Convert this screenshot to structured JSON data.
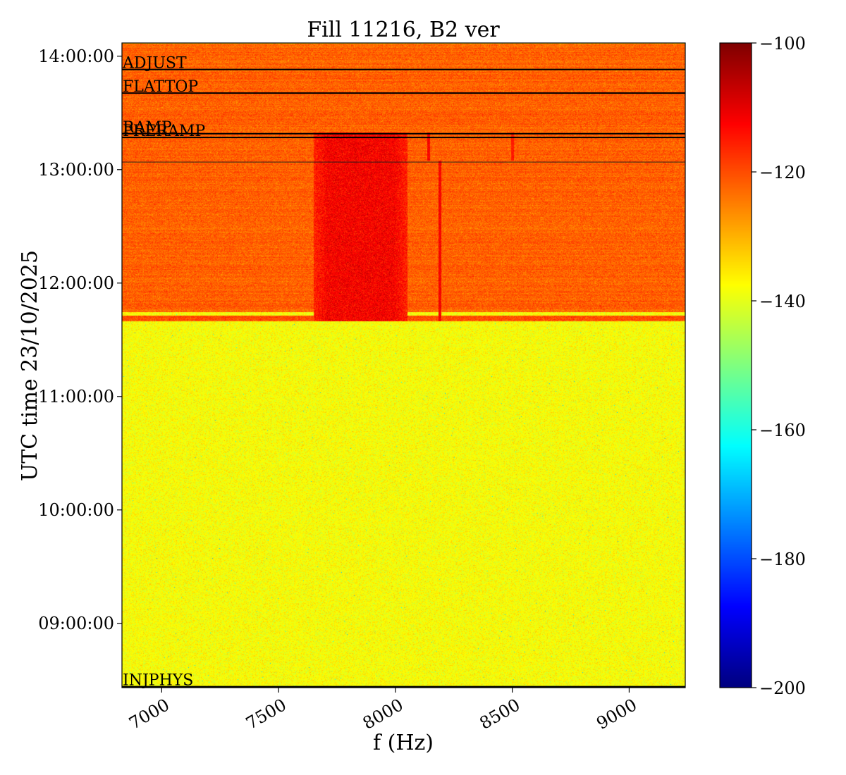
{
  "chart_data": {
    "type": "heatmap",
    "title": "Fill 11216, B2 ver",
    "xlabel": "f (Hz)",
    "ylabel": "UTC time 23/10/2025",
    "xlim": [
      6830,
      9240
    ],
    "ylim": [
      "08:26:00",
      "14:07:00"
    ],
    "x_ticks": [
      7000,
      7500,
      8000,
      8500,
      9000
    ],
    "x_tick_labels": [
      "7000",
      "7500",
      "8000",
      "8500",
      "9000"
    ],
    "y_ticks": [
      "09:00:00",
      "10:00:00",
      "11:00:00",
      "12:00:00",
      "13:00:00",
      "14:00:00"
    ],
    "y_tick_labels": [
      "09:00:00",
      "10:00:00",
      "11:00:00",
      "12:00:00",
      "13:00:00",
      "14:00:00"
    ],
    "colorbar": {
      "colormap": "jet",
      "range": [
        -200,
        -100
      ],
      "ticks": [
        -200,
        -180,
        -160,
        -140,
        -120,
        -100
      ],
      "tick_labels": [
        "−200",
        "−180",
        "−160",
        "−140",
        "−120",
        "−100"
      ]
    },
    "regions": [
      {
        "t_start": "08:26:00",
        "t_end": "11:40:00",
        "level_db": -138
      },
      {
        "t_start": "11:40:00",
        "t_end": "11:43:00",
        "level_db": -120
      },
      {
        "t_start": "11:43:00",
        "t_end": "11:45:00",
        "level_db": -138
      },
      {
        "t_start": "11:45:00",
        "t_end": "14:07:00",
        "level_db": -122
      }
    ],
    "features": [
      {
        "kind": "band",
        "f_start": 7650,
        "f_end": 8050,
        "t_start": "11:40:00",
        "t_end": "13:20:00",
        "level_db": -110
      },
      {
        "kind": "line",
        "f": 8190,
        "t_start": "11:40:00",
        "t_end": "13:05:00",
        "level_db": -112
      },
      {
        "kind": "line",
        "f": 8140,
        "t_start": "13:05:00",
        "t_end": "13:20:00",
        "level_db": -112
      },
      {
        "kind": "line",
        "f": 8500,
        "t_start": "13:05:00",
        "t_end": "13:20:00",
        "level_db": -115
      }
    ],
    "beam_modes": [
      {
        "label": "INJPHYS",
        "time": "08:26:30"
      },
      {
        "label": "PRERAMP",
        "time": "13:17:00"
      },
      {
        "label": "RAMP",
        "time": "13:19:00"
      },
      {
        "label": "FLATTOP",
        "time": "13:40:30"
      },
      {
        "label": "ADJUST",
        "time": "13:53:00"
      }
    ],
    "reference_line_time": "13:04:00"
  }
}
